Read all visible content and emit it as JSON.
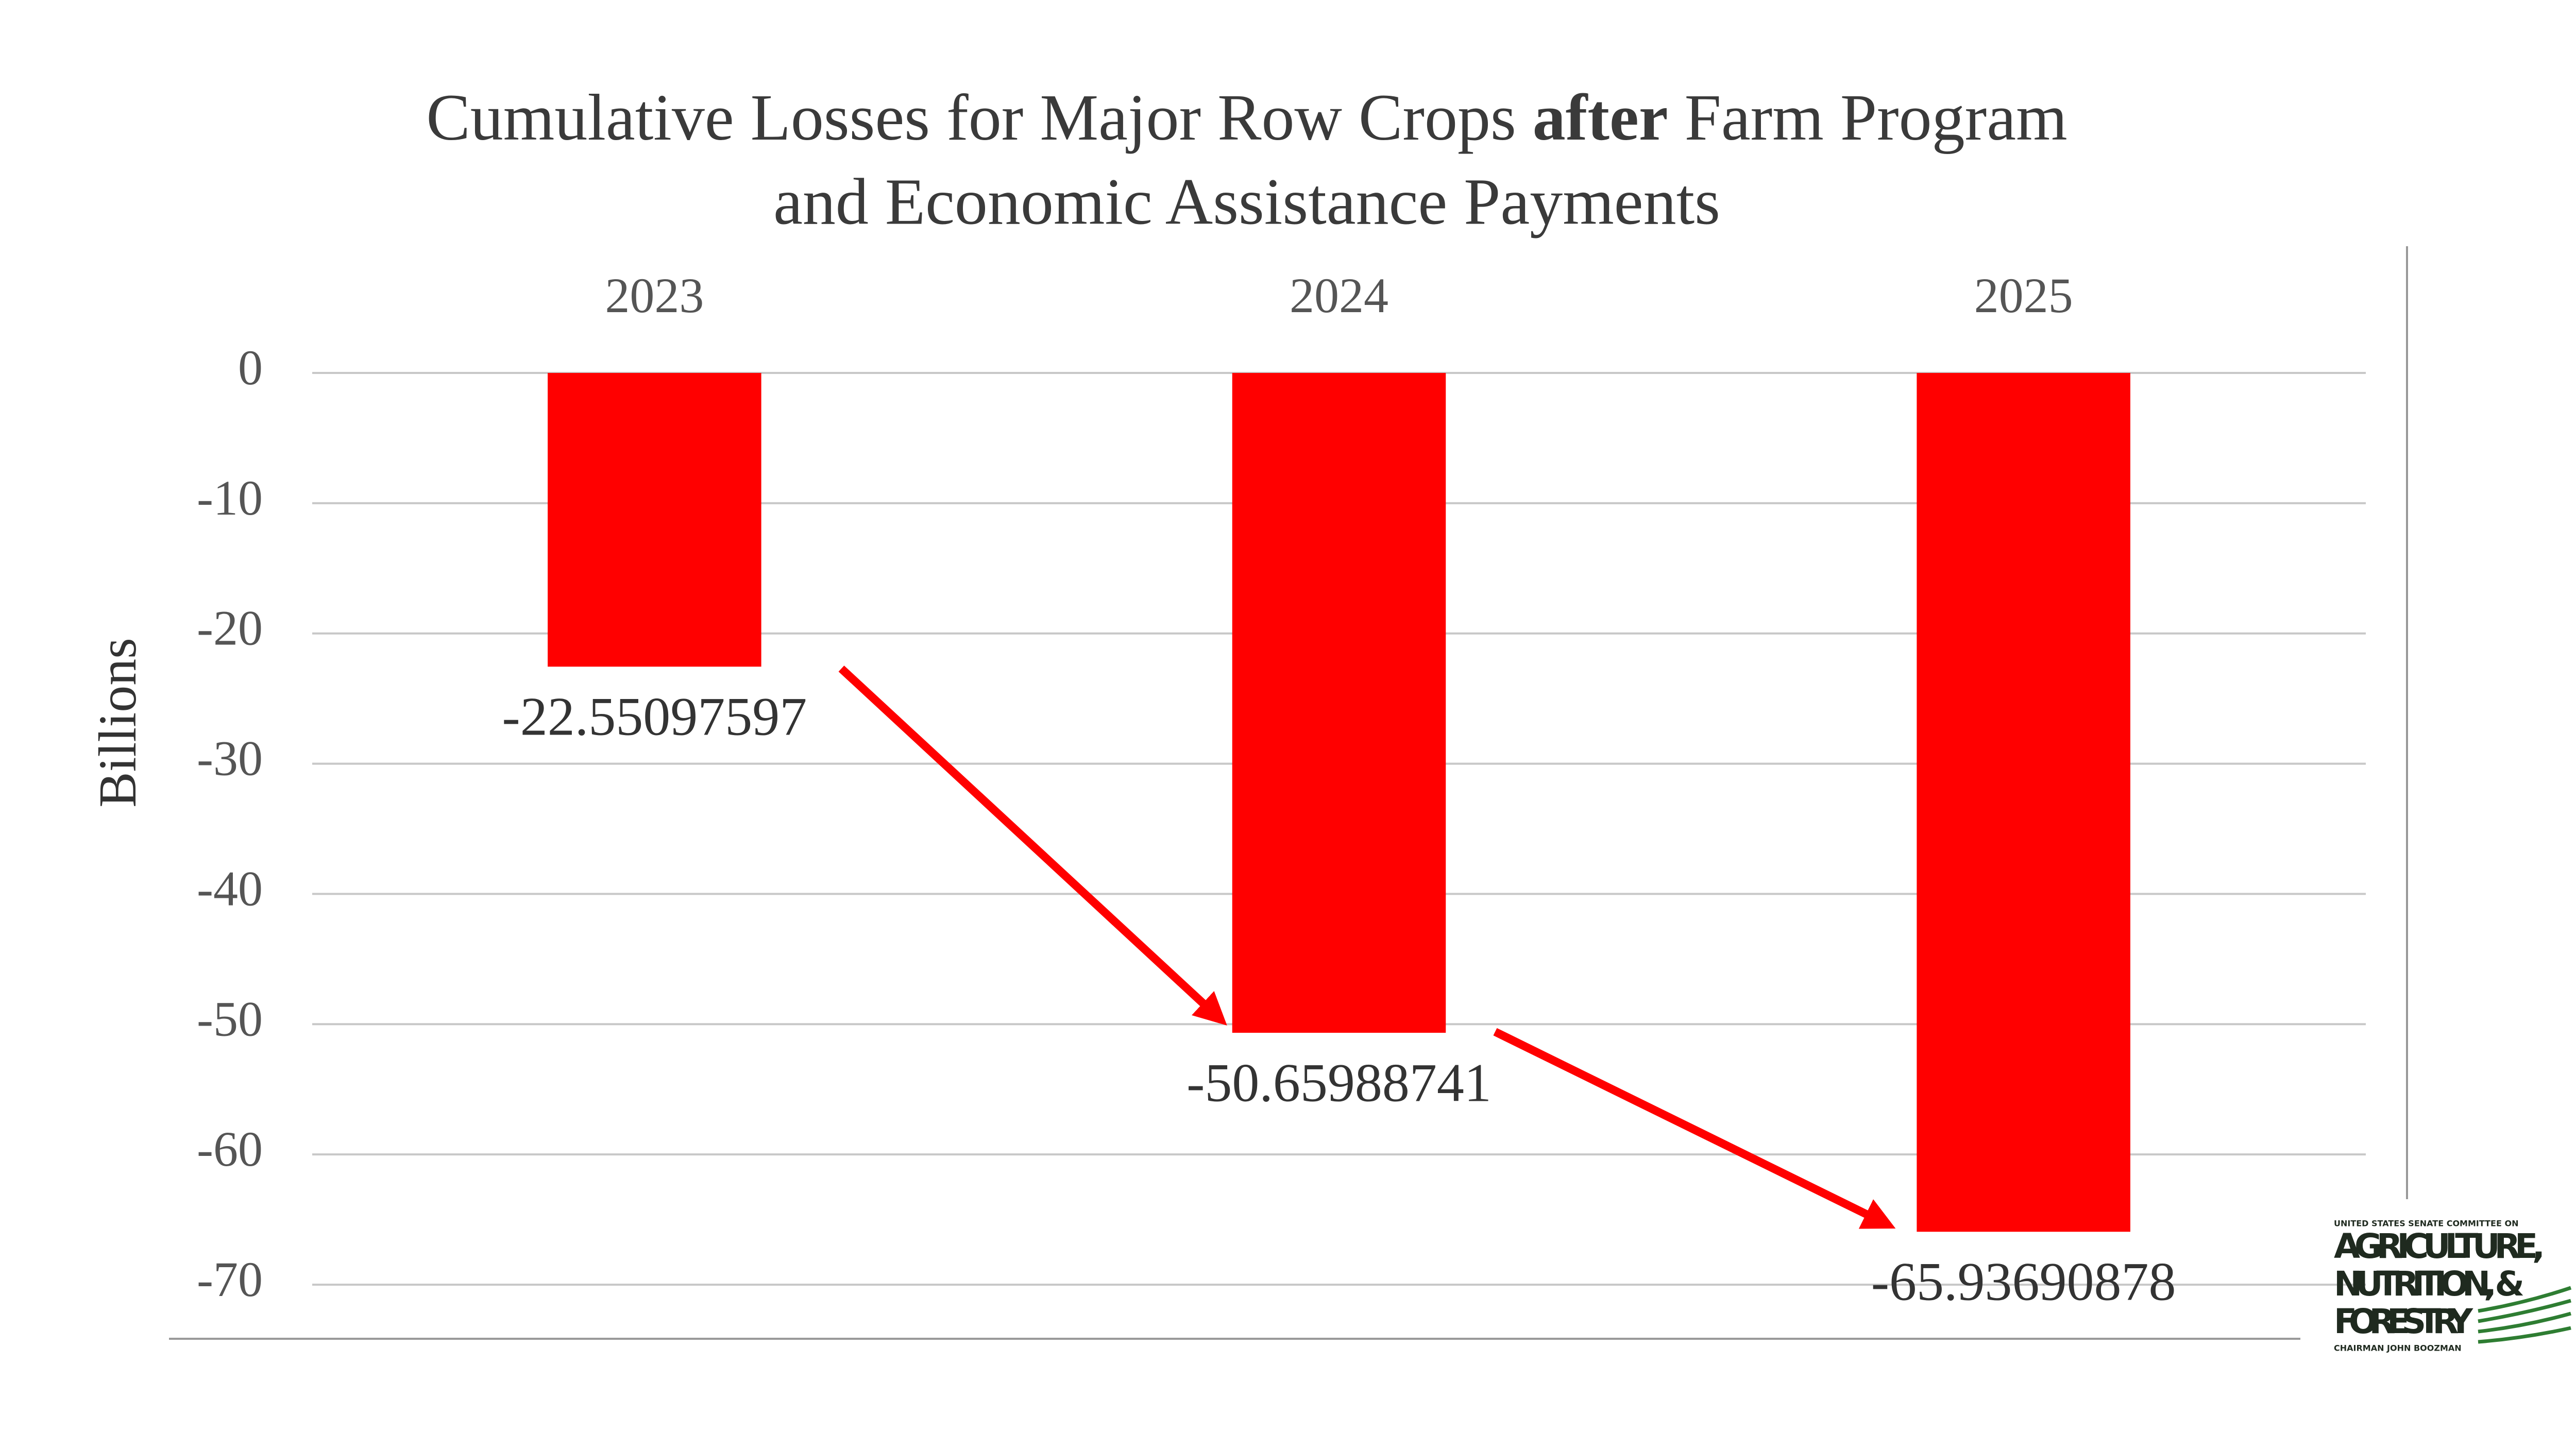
{
  "chart_data": {
    "type": "bar",
    "title": [
      "Cumulative Losses for Major Row Crops ",
      "after",
      " Farm Program",
      "and Economic Assistance Payments"
    ],
    "y_label": "Billions",
    "categories": [
      "2023",
      "2024",
      "2025"
    ],
    "values": [
      -22.55097597,
      -50.65988741,
      -65.93690878
    ],
    "color": "#ff0000",
    "ylim": [
      -70,
      0
    ],
    "yticks": [
      0,
      -10,
      -20,
      -30,
      -40,
      -50,
      -60,
      -70
    ],
    "grid": true
  },
  "logo": {
    "lines": [
      "UNITED STATES SENATE COMMITTEE ON",
      "AGRICULTURE,",
      "NUTRITION, &",
      "FORESTRY",
      "CHAIRMAN JOHN BOOZMAN"
    ]
  }
}
